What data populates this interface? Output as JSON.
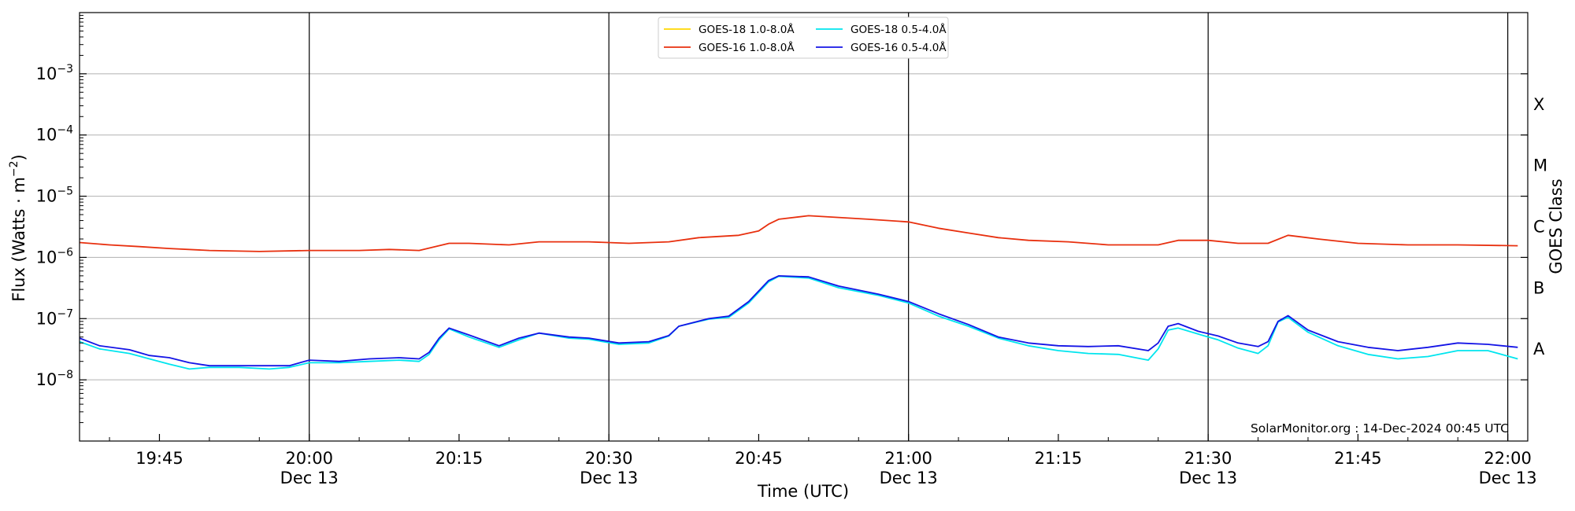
{
  "chart_data": {
    "type": "line",
    "xlabel": "Time (UTC)",
    "ylabel": "Flux (Watts · m",
    "ylabel_sup": "−2",
    "ylabel_close": ")",
    "right_label": "GOES Class",
    "yscale": "log",
    "xlim": [
      "19:37",
      "22:02"
    ],
    "ylim": [
      1e-09,
      0.01
    ],
    "grid": "horizontal at decades",
    "legend_position": "top-center",
    "credit": "SolarMonitor.org : 14-Dec-2024 00:45 UTC",
    "y_ticks": [
      {
        "value": 1e-08,
        "base": "10",
        "exp": "−8"
      },
      {
        "value": 1e-07,
        "base": "10",
        "exp": "−7"
      },
      {
        "value": 1e-06,
        "base": "10",
        "exp": "−6"
      },
      {
        "value": 1e-05,
        "base": "10",
        "exp": "−5"
      },
      {
        "value": 0.0001,
        "base": "10",
        "exp": "−4"
      },
      {
        "value": 0.001,
        "base": "10",
        "exp": "−3"
      }
    ],
    "x_ticks": [
      {
        "time": "19:45",
        "label": "19:45",
        "date": ""
      },
      {
        "time": "20:00",
        "label": "20:00",
        "date": "Dec 13"
      },
      {
        "time": "20:15",
        "label": "20:15",
        "date": ""
      },
      {
        "time": "20:30",
        "label": "20:30",
        "date": "Dec 13"
      },
      {
        "time": "20:45",
        "label": "20:45",
        "date": ""
      },
      {
        "time": "21:00",
        "label": "21:00",
        "date": "Dec 13"
      },
      {
        "time": "21:15",
        "label": "21:15",
        "date": ""
      },
      {
        "time": "21:30",
        "label": "21:30",
        "date": "Dec 13"
      },
      {
        "time": "21:45",
        "label": "21:45",
        "date": ""
      },
      {
        "time": "22:00",
        "label": "22:00",
        "date": "Dec 13"
      }
    ],
    "vlines": [
      "20:00",
      "20:30",
      "21:00",
      "21:30",
      "22:00"
    ],
    "classes": [
      {
        "label": "A",
        "value": 3.16e-08
      },
      {
        "label": "B",
        "value": 3.16e-07
      },
      {
        "label": "C",
        "value": 3.16e-06
      },
      {
        "label": "M",
        "value": 3.16e-05
      },
      {
        "label": "X",
        "value": 0.000316
      }
    ],
    "series": [
      {
        "name": "GOES-18 1.0-8.0Å",
        "color": "#ffd700",
        "points": []
      },
      {
        "name": "GOES-16 1.0-8.0Å",
        "color": "#e8300f",
        "points": [
          [
            "19:37",
            1.75e-06
          ],
          [
            "19:40",
            1.6e-06
          ],
          [
            "19:43",
            1.5e-06
          ],
          [
            "19:46",
            1.4e-06
          ],
          [
            "19:50",
            1.3e-06
          ],
          [
            "19:55",
            1.25e-06
          ],
          [
            "20:00",
            1.3e-06
          ],
          [
            "20:05",
            1.3e-06
          ],
          [
            "20:08",
            1.35e-06
          ],
          [
            "20:11",
            1.3e-06
          ],
          [
            "20:14",
            1.7e-06
          ],
          [
            "20:16",
            1.7e-06
          ],
          [
            "20:20",
            1.6e-06
          ],
          [
            "20:23",
            1.8e-06
          ],
          [
            "20:28",
            1.8e-06
          ],
          [
            "20:32",
            1.7e-06
          ],
          [
            "20:36",
            1.8e-06
          ],
          [
            "20:39",
            2.1e-06
          ],
          [
            "20:43",
            2.3e-06
          ],
          [
            "20:45",
            2.7e-06
          ],
          [
            "20:46",
            3.5e-06
          ],
          [
            "20:47",
            4.2e-06
          ],
          [
            "20:50",
            4.8e-06
          ],
          [
            "20:53",
            4.5e-06
          ],
          [
            "20:56",
            4.2e-06
          ],
          [
            "21:00",
            3.8e-06
          ],
          [
            "21:03",
            3e-06
          ],
          [
            "21:06",
            2.5e-06
          ],
          [
            "21:09",
            2.1e-06
          ],
          [
            "21:12",
            1.9e-06
          ],
          [
            "21:16",
            1.8e-06
          ],
          [
            "21:20",
            1.6e-06
          ],
          [
            "21:25",
            1.6e-06
          ],
          [
            "21:27",
            1.9e-06
          ],
          [
            "21:30",
            1.9e-06
          ],
          [
            "21:33",
            1.7e-06
          ],
          [
            "21:36",
            1.7e-06
          ],
          [
            "21:38",
            2.3e-06
          ],
          [
            "21:41",
            2e-06
          ],
          [
            "21:45",
            1.7e-06
          ],
          [
            "21:50",
            1.6e-06
          ],
          [
            "21:55",
            1.6e-06
          ],
          [
            "22:01",
            1.55e-06
          ]
        ]
      },
      {
        "name": "GOES-18 0.5-4.0Å",
        "color": "#00e5ee",
        "points": [
          [
            "19:37",
            4.2e-08
          ],
          [
            "19:39",
            3.2e-08
          ],
          [
            "19:42",
            2.7e-08
          ],
          [
            "19:44",
            2.2e-08
          ],
          [
            "19:46",
            1.8e-08
          ],
          [
            "19:48",
            1.5e-08
          ],
          [
            "19:50",
            1.6e-08
          ],
          [
            "19:53",
            1.6e-08
          ],
          [
            "19:56",
            1.5e-08
          ],
          [
            "19:58",
            1.6e-08
          ],
          [
            "20:00",
            1.9e-08
          ],
          [
            "20:03",
            1.9e-08
          ],
          [
            "20:06",
            2e-08
          ],
          [
            "20:09",
            2.1e-08
          ],
          [
            "20:11",
            2e-08
          ],
          [
            "20:12",
            2.6e-08
          ],
          [
            "20:13",
            4.5e-08
          ],
          [
            "20:14",
            6.8e-08
          ],
          [
            "20:16",
            5e-08
          ],
          [
            "20:19",
            3.4e-08
          ],
          [
            "20:21",
            4.5e-08
          ],
          [
            "20:23",
            5.8e-08
          ],
          [
            "20:26",
            4.8e-08
          ],
          [
            "20:28",
            4.6e-08
          ],
          [
            "20:31",
            3.8e-08
          ],
          [
            "20:34",
            4e-08
          ],
          [
            "20:36",
            5.2e-08
          ],
          [
            "20:37",
            7.5e-08
          ],
          [
            "20:40",
            9.8e-08
          ],
          [
            "20:42",
            1.05e-07
          ],
          [
            "20:44",
            1.8e-07
          ],
          [
            "20:46",
            4e-07
          ],
          [
            "20:47",
            4.9e-07
          ],
          [
            "20:50",
            4.6e-07
          ],
          [
            "20:53",
            3.2e-07
          ],
          [
            "20:57",
            2.4e-07
          ],
          [
            "21:00",
            1.8e-07
          ],
          [
            "21:03",
            1.1e-07
          ],
          [
            "21:06",
            7.5e-08
          ],
          [
            "21:09",
            4.8e-08
          ],
          [
            "21:12",
            3.6e-08
          ],
          [
            "21:15",
            3e-08
          ],
          [
            "21:18",
            2.7e-08
          ],
          [
            "21:21",
            2.6e-08
          ],
          [
            "21:24",
            2.1e-08
          ],
          [
            "21:25",
            3.2e-08
          ],
          [
            "21:26",
            6.5e-08
          ],
          [
            "21:27",
            7e-08
          ],
          [
            "21:29",
            5.6e-08
          ],
          [
            "21:31",
            4.5e-08
          ],
          [
            "21:33",
            3.3e-08
          ],
          [
            "21:35",
            2.7e-08
          ],
          [
            "21:36",
            3.6e-08
          ],
          [
            "21:37",
            8.8e-08
          ],
          [
            "21:38",
            1.05e-07
          ],
          [
            "21:40",
            6e-08
          ],
          [
            "21:43",
            3.6e-08
          ],
          [
            "21:46",
            2.6e-08
          ],
          [
            "21:49",
            2.2e-08
          ],
          [
            "21:52",
            2.4e-08
          ],
          [
            "21:55",
            3e-08
          ],
          [
            "21:58",
            3e-08
          ],
          [
            "22:01",
            2.2e-08
          ]
        ]
      },
      {
        "name": "GOES-16 0.5-4.0Å",
        "color": "#1414e6",
        "points": [
          [
            "19:37",
            4.8e-08
          ],
          [
            "19:39",
            3.6e-08
          ],
          [
            "19:42",
            3.1e-08
          ],
          [
            "19:44",
            2.5e-08
          ],
          [
            "19:46",
            2.3e-08
          ],
          [
            "19:48",
            1.9e-08
          ],
          [
            "19:50",
            1.7e-08
          ],
          [
            "19:53",
            1.7e-08
          ],
          [
            "19:56",
            1.7e-08
          ],
          [
            "19:58",
            1.7e-08
          ],
          [
            "20:00",
            2.1e-08
          ],
          [
            "20:03",
            2e-08
          ],
          [
            "20:06",
            2.2e-08
          ],
          [
            "20:09",
            2.3e-08
          ],
          [
            "20:11",
            2.2e-08
          ],
          [
            "20:12",
            2.8e-08
          ],
          [
            "20:13",
            4.8e-08
          ],
          [
            "20:14",
            7e-08
          ],
          [
            "20:16",
            5.4e-08
          ],
          [
            "20:19",
            3.6e-08
          ],
          [
            "20:21",
            4.8e-08
          ],
          [
            "20:23",
            5.8e-08
          ],
          [
            "20:26",
            5e-08
          ],
          [
            "20:28",
            4.8e-08
          ],
          [
            "20:31",
            4e-08
          ],
          [
            "20:34",
            4.2e-08
          ],
          [
            "20:36",
            5.3e-08
          ],
          [
            "20:37",
            7.5e-08
          ],
          [
            "20:40",
            1e-07
          ],
          [
            "20:42",
            1.1e-07
          ],
          [
            "20:44",
            1.9e-07
          ],
          [
            "20:46",
            4.2e-07
          ],
          [
            "20:47",
            5e-07
          ],
          [
            "20:50",
            4.8e-07
          ],
          [
            "20:53",
            3.4e-07
          ],
          [
            "20:57",
            2.5e-07
          ],
          [
            "21:00",
            1.9e-07
          ],
          [
            "21:03",
            1.2e-07
          ],
          [
            "21:06",
            8e-08
          ],
          [
            "21:09",
            5e-08
          ],
          [
            "21:12",
            4e-08
          ],
          [
            "21:15",
            3.6e-08
          ],
          [
            "21:18",
            3.5e-08
          ],
          [
            "21:21",
            3.6e-08
          ],
          [
            "21:24",
            3e-08
          ],
          [
            "21:25",
            4e-08
          ],
          [
            "21:26",
            7.5e-08
          ],
          [
            "21:27",
            8.3e-08
          ],
          [
            "21:29",
            6.2e-08
          ],
          [
            "21:31",
            5.2e-08
          ],
          [
            "21:33",
            4e-08
          ],
          [
            "21:35",
            3.5e-08
          ],
          [
            "21:36",
            4.2e-08
          ],
          [
            "21:37",
            9e-08
          ],
          [
            "21:38",
            1.12e-07
          ],
          [
            "21:40",
            6.5e-08
          ],
          [
            "21:43",
            4.2e-08
          ],
          [
            "21:46",
            3.4e-08
          ],
          [
            "21:49",
            3e-08
          ],
          [
            "21:52",
            3.4e-08
          ],
          [
            "21:55",
            4e-08
          ],
          [
            "21:58",
            3.8e-08
          ],
          [
            "22:01",
            3.4e-08
          ]
        ]
      }
    ]
  }
}
